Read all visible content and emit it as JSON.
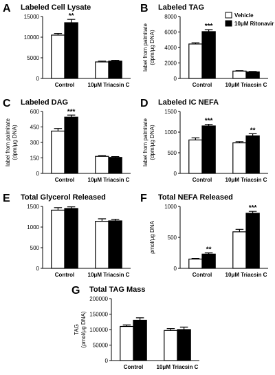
{
  "chart_data": [
    {
      "type": "bar",
      "letter": "A",
      "title": "Labeled Cell Lysate",
      "categories": [
        "Control",
        "10μM Triacsin C"
      ],
      "series": [
        {
          "color": "#ffffff",
          "values": [
            10500,
            4000
          ],
          "errors": [
            400,
            200
          ],
          "significance": [
            null,
            null
          ]
        },
        {
          "color": "#000000",
          "values": [
            13500,
            4200
          ],
          "errors": [
            800,
            200
          ],
          "significance": [
            "**",
            null
          ]
        }
      ],
      "ylim": [
        0,
        15000
      ],
      "yticks": [
        0,
        5000,
        10000,
        15000
      ]
    },
    {
      "type": "bar",
      "letter": "B",
      "title": "Labeled TAG",
      "ylabel": [
        "label from palmitate",
        "(dpm/μg DNA)"
      ],
      "categories": [
        "Control",
        "10μM Triacsin C"
      ],
      "series": [
        {
          "name": "Vehicle",
          "color": "#ffffff",
          "values": [
            4450,
            950
          ],
          "errors": [
            150,
            50
          ],
          "significance": [
            null,
            null
          ]
        },
        {
          "name": "10μM Ritonavir",
          "color": "#000000",
          "values": [
            6050,
            850
          ],
          "errors": [
            250,
            50
          ],
          "significance": [
            "***",
            null
          ]
        }
      ],
      "legend": "top-right",
      "ylim": [
        0,
        8000
      ],
      "yticks": [
        0,
        2000,
        4000,
        6000,
        8000
      ]
    },
    {
      "type": "bar",
      "letter": "C",
      "title": "Labeled DAG",
      "ylabel": [
        "label from palmitate",
        "(dpm/μg DNA)"
      ],
      "categories": [
        "Control",
        "10μM Triacsin C"
      ],
      "series": [
        {
          "color": "#ffffff",
          "values": [
            410,
            165
          ],
          "errors": [
            25,
            8
          ],
          "significance": [
            null,
            null
          ]
        },
        {
          "color": "#000000",
          "values": [
            545,
            155
          ],
          "errors": [
            20,
            8
          ],
          "significance": [
            "***",
            null
          ]
        }
      ],
      "ylim": [
        0,
        600
      ],
      "yticks": [
        0,
        150,
        300,
        450,
        600
      ]
    },
    {
      "type": "bar",
      "letter": "D",
      "title": "Labeled IC NEFA",
      "ylabel": [
        "label from palmitate",
        "(dpm/μg DNA)"
      ],
      "categories": [
        "Control",
        "10μM Triacsin C"
      ],
      "series": [
        {
          "color": "#ffffff",
          "values": [
            810,
            740
          ],
          "errors": [
            50,
            30
          ],
          "significance": [
            null,
            null
          ]
        },
        {
          "color": "#000000",
          "values": [
            1150,
            910
          ],
          "errors": [
            40,
            50
          ],
          "significance": [
            "***",
            "**"
          ]
        }
      ],
      "ylim": [
        0,
        1500
      ],
      "yticks": [
        0,
        500,
        1000,
        1500
      ]
    },
    {
      "type": "bar",
      "letter": "E",
      "title": "Total Glycerol Released",
      "categories": [
        "Control",
        "10μM Triacsin C"
      ],
      "series": [
        {
          "color": "#ffffff",
          "values": [
            1410,
            1140
          ],
          "errors": [
            60,
            60
          ],
          "significance": [
            null,
            null
          ]
        },
        {
          "color": "#000000",
          "values": [
            1450,
            1150
          ],
          "errors": [
            40,
            40
          ],
          "significance": [
            null,
            null
          ]
        }
      ],
      "ylim": [
        0,
        1500
      ],
      "yticks": [
        0,
        500,
        1000,
        1500
      ]
    },
    {
      "type": "bar",
      "letter": "F",
      "title": "Total NEFA Released",
      "ylabel": [
        "ρmol/μg DNA"
      ],
      "categories": [
        "Control",
        "10μM Triacsin C"
      ],
      "series": [
        {
          "color": "#ffffff",
          "values": [
            150,
            590
          ],
          "errors": [
            10,
            40
          ],
          "significance": [
            null,
            null
          ]
        },
        {
          "color": "#000000",
          "values": [
            230,
            890
          ],
          "errors": [
            20,
            30
          ],
          "significance": [
            "**",
            "***"
          ]
        }
      ],
      "ylim": [
        0,
        1000
      ],
      "yticks": [
        0,
        500,
        1000
      ]
    },
    {
      "type": "bar",
      "letter": "G",
      "title": "Total TAG Mass",
      "ylabel": [
        "TAG",
        "(ρmol/μg DNA)"
      ],
      "categories": [
        "Control",
        "10μM Triacsin C"
      ],
      "series": [
        {
          "color": "#ffffff",
          "values": [
            110000,
            97000
          ],
          "errors": [
            5000,
            6000
          ],
          "significance": [
            null,
            null
          ]
        },
        {
          "color": "#000000",
          "values": [
            130000,
            100000
          ],
          "errors": [
            8000,
            8000
          ],
          "significance": [
            null,
            null
          ]
        }
      ],
      "ylim": [
        0,
        200000
      ],
      "yticks": [
        0,
        50000,
        100000,
        150000,
        200000
      ]
    }
  ]
}
